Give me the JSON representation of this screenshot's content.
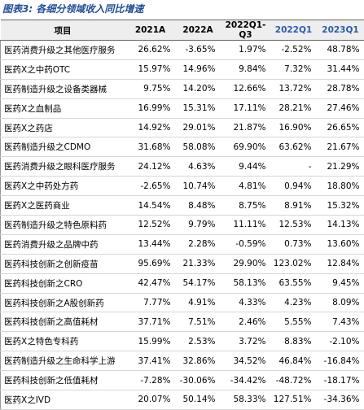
{
  "title": "图表3: 各细分领域收入同比增速",
  "table": {
    "header": [
      "项目",
      "2021A",
      "2022A",
      "2022Q1-Q3",
      "2022Q1",
      "2023Q1"
    ],
    "rows": [
      [
        "医药消费升级之其他医疗服务",
        "26.62%",
        "-3.65%",
        "1.97%",
        "-2.52%",
        "48.78%"
      ],
      [
        "医药X之中药OTC",
        "15.97%",
        "14.96%",
        "9.84%",
        "7.32%",
        "31.44%"
      ],
      [
        "医药制造升级之设备类器械",
        "9.75%",
        "14.20%",
        "12.66%",
        "13.72%",
        "28.78%"
      ],
      [
        "医药X之血制品",
        "16.99%",
        "15.31%",
        "17.11%",
        "28.21%",
        "27.46%"
      ],
      [
        "医药X之药店",
        "14.92%",
        "29.01%",
        "21.87%",
        "16.90%",
        "26.65%"
      ],
      [
        "医药制造升级之CDMO",
        "31.68%",
        "58.08%",
        "69.90%",
        "63.62%",
        "21.67%"
      ],
      [
        "医药消费升级之眼科医疗服务",
        "24.12%",
        "4.63%",
        "9.44%",
        "-",
        "21.29%"
      ],
      [
        "医药X之中药处方药",
        "-2.65%",
        "10.74%",
        "4.81%",
        "0.94%",
        "18.80%"
      ],
      [
        "医药X之医药商业",
        "14.54%",
        "8.48%",
        "8.75%",
        "8.91%",
        "15.32%"
      ],
      [
        "医药制造升级之特色原料药",
        "12.52%",
        "9.79%",
        "11.11%",
        "12.53%",
        "14.13%"
      ],
      [
        "医药消费升级之品牌中药",
        "13.44%",
        "2.28%",
        "-0.59%",
        "0.73%",
        "13.60%"
      ],
      [
        "医药科技创新之创新疫苗",
        "95.69%",
        "21.33%",
        "29.90%",
        "123.02%",
        "12.84%"
      ],
      [
        "医药科技创新之CRO",
        "42.47%",
        "54.17%",
        "58.13%",
        "63.55%",
        "9.45%"
      ],
      [
        "医药科技创新之A股创新药",
        "7.77%",
        "4.91%",
        "4.33%",
        "4.23%",
        "8.09%"
      ],
      [
        "医药科技创新之高值耗材",
        "37.71%",
        "7.51%",
        "2.46%",
        "5.55%",
        "7.43%"
      ],
      [
        "医药X之特色专科药",
        "15.99%",
        "2.53%",
        "3.72%",
        "8.83%",
        "-2.10%"
      ],
      [
        "医药制造升级之生命科学上游",
        "37.41%",
        "32.86%",
        "34.52%",
        "46.84%",
        "-16.84%"
      ],
      [
        "医药科技创新之低值耗材",
        "-7.28%",
        "-30.06%",
        "-34.42%",
        "-48.72%",
        "-18.17%"
      ],
      [
        "医药X之IVD",
        "20.07%",
        "50.14%",
        "58.33%",
        "127.51%",
        "-34.36%"
      ]
    ]
  }
}
